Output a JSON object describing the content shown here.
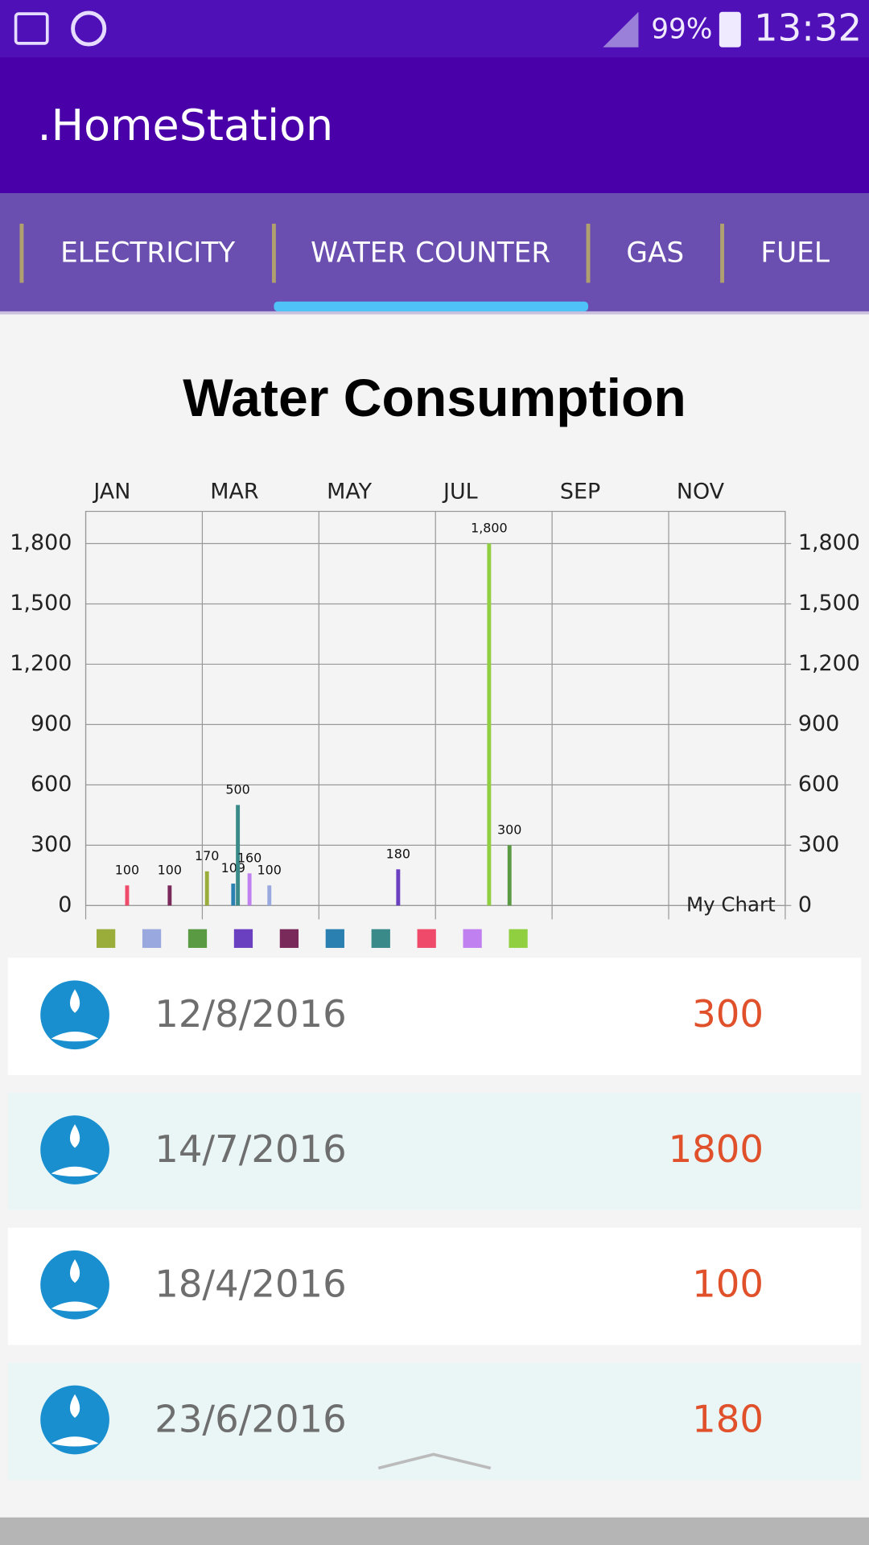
{
  "status_bar": {
    "battery": "99%",
    "time": "13:32"
  },
  "app_bar": {
    "title": ".HomeStation"
  },
  "tabs": {
    "items": [
      "ELECTRICITY",
      "WATER COUNTER",
      "GAS",
      "FUEL"
    ],
    "selected": 1
  },
  "chart_data": {
    "type": "bar",
    "title": "Water Consumption",
    "annotation": "My Chart",
    "xlim": [
      0,
      12
    ],
    "xticks": [
      {
        "value": 0,
        "label": "JAN"
      },
      {
        "value": 2,
        "label": "MAR"
      },
      {
        "value": 4,
        "label": "MAY"
      },
      {
        "value": 6,
        "label": "JUL"
      },
      {
        "value": 8,
        "label": "SEP"
      },
      {
        "value": 10,
        "label": "NOV"
      }
    ],
    "ylim": [
      0,
      1960
    ],
    "yticks": [
      0,
      300,
      600,
      900,
      {
        "value": 1200,
        "label": "1,200"
      },
      {
        "value": 1500,
        "label": "1,500"
      },
      {
        "value": 1800,
        "label": "1,800"
      }
    ],
    "y2lim": [
      0,
      1960
    ],
    "y2ticks": [
      0,
      300,
      600,
      900,
      {
        "value": 1200,
        "label": "1,200"
      },
      {
        "value": 1500,
        "label": "1,500"
      },
      {
        "value": 1800,
        "label": "1,800"
      }
    ],
    "grid": true,
    "series": [
      {
        "color": "#9aad3a",
        "x": [
          2.08
        ],
        "values": [
          170
        ]
      },
      {
        "color": "#9aa8e0",
        "x": [
          3.15
        ],
        "values": [
          100
        ]
      },
      {
        "color": "#5a9a42",
        "x": [
          7.27
        ],
        "values": [
          300
        ]
      },
      {
        "color": "#6a3fc0",
        "x": [
          5.36
        ],
        "values": [
          180
        ]
      },
      {
        "color": "#7a2a5a",
        "x": [
          1.44
        ],
        "values": [
          100
        ]
      },
      {
        "color": "#2a80b0",
        "x": [
          2.53
        ],
        "values": [
          109
        ]
      },
      {
        "color": "#3a8a8a",
        "x": [
          2.61
        ],
        "values": [
          500
        ]
      },
      {
        "color": "#f04a6a",
        "x": [
          0.71
        ],
        "values": [
          100
        ]
      },
      {
        "color": "#c080f0",
        "x": [
          2.81
        ],
        "values": [
          160
        ]
      },
      {
        "color": "#90d040",
        "x": [
          6.92
        ],
        "values": [
          1800
        ],
        "value_labels": [
          "1,800"
        ]
      }
    ]
  },
  "entries": [
    {
      "date": "12/8/2016",
      "value": 300
    },
    {
      "date": "14/7/2016",
      "value": 1800
    },
    {
      "date": "18/4/2016",
      "value": 100
    },
    {
      "date": "23/6/2016",
      "value": 180
    }
  ]
}
